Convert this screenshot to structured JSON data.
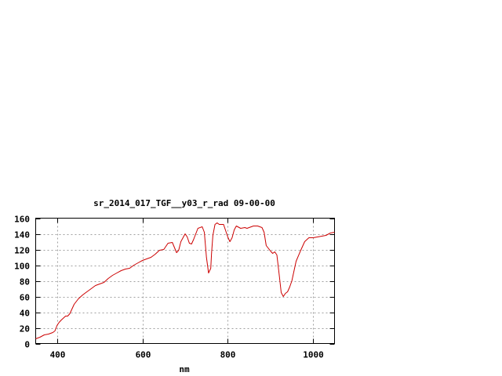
{
  "chart_data": {
    "type": "line",
    "title": "sr_2014_017_TGF__y03_r_rad 09-00-00",
    "xlabel": "nm",
    "ylabel": "",
    "xlim": [
      350,
      1050
    ],
    "ylim": [
      0,
      160
    ],
    "xticks": [
      400,
      600,
      800,
      1000
    ],
    "yticks": [
      0,
      20,
      40,
      60,
      80,
      100,
      120,
      140,
      160
    ],
    "grid": true,
    "series": [
      {
        "color": "#cc0000",
        "x": [
          350,
          360,
          370,
          380,
          390,
          395,
          400,
          405,
          410,
          420,
          425,
          430,
          440,
          450,
          460,
          470,
          480,
          490,
          500,
          510,
          520,
          530,
          540,
          550,
          560,
          570,
          580,
          590,
          600,
          610,
          620,
          630,
          640,
          650,
          660,
          670,
          680,
          685,
          690,
          700,
          705,
          710,
          715,
          720,
          730,
          740,
          745,
          750,
          755,
          760,
          762,
          765,
          770,
          775,
          780,
          790,
          800,
          805,
          810,
          815,
          820,
          830,
          840,
          845,
          850,
          860,
          870,
          880,
          885,
          890,
          900,
          905,
          910,
          915,
          920,
          925,
          930,
          935,
          940,
          945,
          950,
          960,
          970,
          980,
          990,
          1000,
          1010,
          1020,
          1030,
          1040,
          1050
        ],
        "y": [
          6,
          8,
          11,
          12,
          14,
          16,
          23,
          27,
          30,
          35,
          35,
          38,
          50,
          57,
          62,
          66,
          70,
          74,
          76,
          78,
          83,
          87,
          90,
          93,
          95,
          96,
          100,
          103,
          106,
          108,
          110,
          114,
          119,
          120,
          128,
          129,
          116,
          119,
          130,
          140,
          136,
          128,
          127,
          133,
          147,
          149,
          142,
          110,
          90,
          96,
          115,
          138,
          152,
          154,
          152,
          152,
          136,
          130,
          135,
          145,
          150,
          147,
          148,
          147,
          148,
          150,
          150,
          148,
          142,
          125,
          118,
          115,
          117,
          113,
          90,
          65,
          60,
          64,
          66,
          72,
          80,
          105,
          118,
          130,
          135,
          135,
          136,
          137,
          138,
          141,
          142
        ]
      }
    ]
  }
}
